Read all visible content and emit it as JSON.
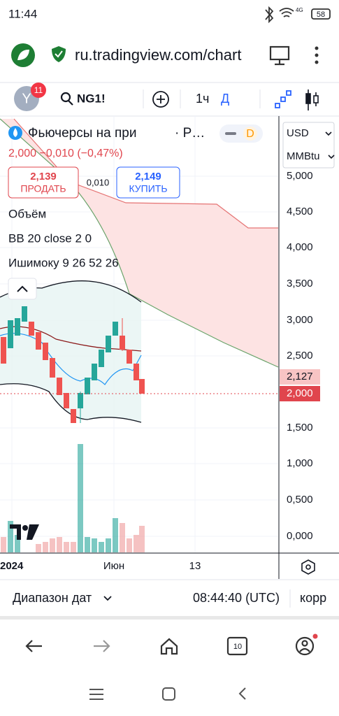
{
  "status": {
    "time": "11:44",
    "network": "4G",
    "battery": "58"
  },
  "browser": {
    "url": "ru.tradingview.com/chart"
  },
  "toolbar": {
    "avatar": "Y",
    "badge": "11",
    "symbol": "NG1!",
    "interval": "1ч",
    "chart_style": "Д"
  },
  "legend": {
    "title": "Фьючерсы на при",
    "exchange": "· Р…",
    "badge": "D",
    "price_line": "2,000 −0,010 (−0,47%)"
  },
  "trade": {
    "sell_price": "2,139",
    "sell_label": "ПРОДАТЬ",
    "spread": "0,010",
    "buy_price": "2,149",
    "buy_label": "КУПИТЬ"
  },
  "indicators": [
    "Объём",
    "BB 20 close 2 0",
    "Ишимоку 9 26 52 26"
  ],
  "price_axis": {
    "currency": "USD",
    "unit": "MMBtu",
    "labels": [
      "5,000",
      "4,500",
      "4,000",
      "3,500",
      "3,000",
      "2,500",
      "1,500",
      "1,000",
      "0,500",
      "0,000"
    ],
    "cloud_label": "2,127",
    "last_label": "2,000"
  },
  "time_axis": {
    "labels": [
      "2024",
      "Июн",
      "13"
    ]
  },
  "footer": {
    "range": "Диапазон дат",
    "clock": "08:44:40 (UTC)",
    "adjust": "корр"
  },
  "nav": {
    "tab_count": "10"
  }
}
